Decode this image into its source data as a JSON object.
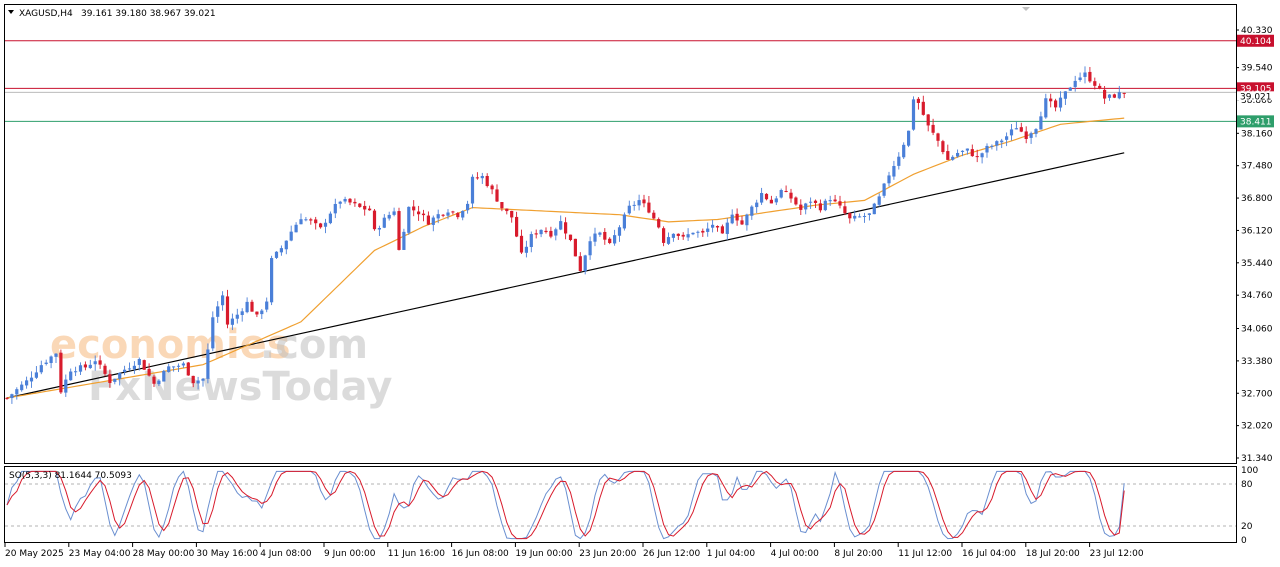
{
  "header": {
    "symbol": "XAGUSD,H4",
    "ohlc": "39.161 39.180 38.967 39.021"
  },
  "indicator_header": "SO(5,3,3) 81.1644 70.5093",
  "watermark": {
    "part1": "economies",
    "part2": ".com",
    "part3": "FxNewsToday"
  },
  "colors": {
    "bull": "#4a7fd8",
    "bear": "#d81b2c",
    "ma": "#f0a030",
    "trend": "#000000",
    "resistance": "#c8102e",
    "support": "#2e9e6b",
    "stoch_main": "#6a8fd0",
    "stoch_signal": "#d81b2c"
  },
  "chart_data": {
    "type": "candlestick",
    "symbol": "XAGUSD",
    "timeframe": "H4",
    "ylim": [
      31.34,
      40.33
    ],
    "y_ticks": [
      "40.330",
      "39.540",
      "38.860",
      "38.160",
      "37.480",
      "36.800",
      "36.120",
      "35.440",
      "34.760",
      "34.060",
      "33.380",
      "32.700",
      "32.020",
      "31.340"
    ],
    "x_ticks": [
      "20 May 2025",
      "23 May 04:00",
      "28 May 00:00",
      "30 May 16:00",
      "4 Jun 08:00",
      "9 Jun 00:00",
      "11 Jun 16:00",
      "16 Jun 08:00",
      "19 Jun 00:00",
      "23 Jun 20:00",
      "26 Jun 12:00",
      "1 Jul 04:00",
      "4 Jul 00:00",
      "8 Jul 20:00",
      "11 Jul 12:00",
      "16 Jul 04:00",
      "18 Jul 20:00",
      "23 Jul 12:00"
    ],
    "close_path": [
      [
        0,
        32.6
      ],
      [
        4,
        32.95
      ],
      [
        7,
        33.3
      ],
      [
        10,
        33.55
      ],
      [
        11,
        32.75
      ],
      [
        13,
        33.2
      ],
      [
        16,
        33.25
      ],
      [
        18,
        33.4
      ],
      [
        21,
        32.95
      ],
      [
        24,
        33.2
      ],
      [
        27,
        33.4
      ],
      [
        30,
        32.9
      ],
      [
        33,
        33.25
      ],
      [
        36,
        33.3
      ],
      [
        38,
        32.95
      ],
      [
        40,
        33.0
      ],
      [
        41,
        33.6
      ],
      [
        42,
        34.3
      ],
      [
        44,
        34.75
      ],
      [
        45,
        34.15
      ],
      [
        47,
        34.35
      ],
      [
        49,
        34.6
      ],
      [
        51,
        34.3
      ],
      [
        53,
        34.65
      ],
      [
        54,
        35.5
      ],
      [
        56,
        35.75
      ],
      [
        58,
        36.1
      ],
      [
        60,
        36.4
      ],
      [
        62,
        36.3
      ],
      [
        64,
        36.15
      ],
      [
        66,
        36.5
      ],
      [
        68,
        36.75
      ],
      [
        70,
        36.7
      ],
      [
        72,
        36.6
      ],
      [
        74,
        36.55
      ],
      [
        75,
        36.1
      ],
      [
        77,
        36.35
      ],
      [
        79,
        36.55
      ],
      [
        80,
        35.7
      ],
      [
        82,
        36.6
      ],
      [
        84,
        36.5
      ],
      [
        86,
        36.3
      ],
      [
        88,
        36.45
      ],
      [
        90,
        36.55
      ],
      [
        92,
        36.45
      ],
      [
        94,
        36.7
      ],
      [
        95,
        37.2
      ],
      [
        97,
        37.25
      ],
      [
        99,
        36.95
      ],
      [
        101,
        36.6
      ],
      [
        103,
        36.4
      ],
      [
        105,
        35.6
      ],
      [
        107,
        36.0
      ],
      [
        109,
        36.15
      ],
      [
        111,
        36.05
      ],
      [
        113,
        36.3
      ],
      [
        115,
        35.9
      ],
      [
        117,
        35.3
      ],
      [
        119,
        35.95
      ],
      [
        121,
        36.05
      ],
      [
        123,
        35.8
      ],
      [
        125,
        36.2
      ],
      [
        127,
        36.6
      ],
      [
        129,
        36.75
      ],
      [
        131,
        36.55
      ],
      [
        133,
        36.2
      ],
      [
        134,
        35.9
      ],
      [
        136,
        36.1
      ],
      [
        138,
        35.95
      ],
      [
        140,
        36.1
      ],
      [
        142,
        36.05
      ],
      [
        144,
        36.25
      ],
      [
        146,
        36.0
      ],
      [
        148,
        36.5
      ],
      [
        150,
        36.25
      ],
      [
        152,
        36.6
      ],
      [
        154,
        36.9
      ],
      [
        156,
        36.7
      ],
      [
        158,
        36.95
      ],
      [
        160,
        36.8
      ],
      [
        162,
        36.55
      ],
      [
        164,
        36.75
      ],
      [
        166,
        36.6
      ],
      [
        168,
        36.8
      ],
      [
        170,
        36.6
      ],
      [
        172,
        36.35
      ],
      [
        174,
        36.4
      ],
      [
        176,
        36.45
      ],
      [
        178,
        36.8
      ],
      [
        180,
        37.3
      ],
      [
        182,
        37.7
      ],
      [
        184,
        38.2
      ],
      [
        185,
        38.9
      ],
      [
        186,
        38.8
      ],
      [
        188,
        38.3
      ],
      [
        190,
        38.0
      ],
      [
        192,
        37.6
      ],
      [
        194,
        37.75
      ],
      [
        196,
        37.8
      ],
      [
        198,
        37.65
      ],
      [
        200,
        37.85
      ],
      [
        202,
        37.95
      ],
      [
        204,
        38.1
      ],
      [
        206,
        38.3
      ],
      [
        208,
        38.1
      ],
      [
        210,
        38.3
      ],
      [
        212,
        38.85
      ],
      [
        214,
        38.7
      ],
      [
        216,
        39.0
      ],
      [
        218,
        39.3
      ],
      [
        220,
        39.4
      ],
      [
        222,
        39.2
      ],
      [
        224,
        38.9
      ],
      [
        226,
        38.95
      ],
      [
        228,
        39.02
      ]
    ],
    "ma_path": [
      [
        0,
        32.6
      ],
      [
        20,
        32.95
      ],
      [
        40,
        33.3
      ],
      [
        60,
        34.2
      ],
      [
        75,
        35.7
      ],
      [
        85,
        36.2
      ],
      [
        95,
        36.6
      ],
      [
        105,
        36.55
      ],
      [
        115,
        36.5
      ],
      [
        125,
        36.45
      ],
      [
        135,
        36.3
      ],
      [
        145,
        36.35
      ],
      [
        155,
        36.5
      ],
      [
        165,
        36.65
      ],
      [
        175,
        36.75
      ],
      [
        185,
        37.3
      ],
      [
        195,
        37.7
      ],
      [
        205,
        38.0
      ],
      [
        215,
        38.35
      ],
      [
        225,
        38.45
      ],
      [
        228,
        38.48
      ]
    ],
    "trendline": {
      "start": [
        0,
        32.6
      ],
      "end": [
        228,
        37.75
      ]
    },
    "levels": [
      {
        "value": 40.104,
        "label": "40.104",
        "kind": "resistance"
      },
      {
        "value": 39.105,
        "label": "39.105",
        "kind": "resistance"
      },
      {
        "value": 38.411,
        "label": "38.411",
        "kind": "support"
      }
    ],
    "current_price": 39.021,
    "current_price_label": "39.021",
    "stochastic": {
      "name": "SO(5,3,3)",
      "main": 81.1644,
      "signal": 70.5093,
      "ylim": [
        0,
        100
      ],
      "ticks": [
        "100",
        "80",
        "20",
        "0"
      ]
    }
  }
}
